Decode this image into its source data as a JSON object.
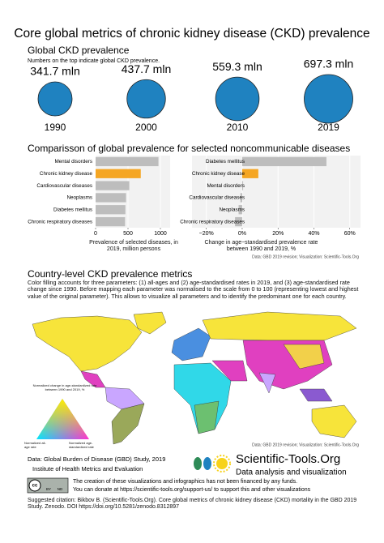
{
  "title": "Core global metrics of chronic kidney disease (CKD) prevalence",
  "comparison_title": "Comparisson of global prevalence for selected noncommunicable diseases",
  "chart_data": [
    {
      "type": "bubble",
      "title": "Global CKD prevalence",
      "subtitle": "Numbers on the top indicate global CKD prevalence.",
      "categories": [
        "1990",
        "2000",
        "2010",
        "2019"
      ],
      "values": [
        341.7,
        437.7,
        559.3,
        697.3
      ],
      "value_labels": [
        "341.7 mln",
        "437.7 mln",
        "559.3 mln",
        "697.3 mln"
      ],
      "color": "#1f82c0"
    },
    {
      "type": "bar",
      "orientation": "horizontal",
      "categories": [
        "Mental disorders",
        "Chronic kidney disease",
        "Cardiovascular diseases",
        "Neoplasms",
        "Diabetes mellitus",
        "Chronic respiratory diseases"
      ],
      "values": [
        970,
        697,
        520,
        470,
        460,
        455
      ],
      "colors": [
        "#bdbdbd",
        "#f5a623",
        "#bdbdbd",
        "#bdbdbd",
        "#bdbdbd",
        "#bdbdbd"
      ],
      "xlabel": "Prevalence of selected diseases, in 2019, million persons",
      "xlim": [
        0,
        1150
      ],
      "xticks": [
        0,
        500,
        1000
      ],
      "grid": true
    },
    {
      "type": "bar",
      "orientation": "horizontal",
      "categories": [
        "Diabetes mellitus",
        "Chronic kidney disease",
        "Mental disorders",
        "Cardiovascular diseases",
        "Neoplasms",
        "Chronic respiratory diseases"
      ],
      "values": [
        47,
        9,
        0.5,
        -1,
        -2,
        -4
      ],
      "colors": [
        "#bdbdbd",
        "#f5a623",
        "#bdbdbd",
        "#bdbdbd",
        "#bdbdbd",
        "#bdbdbd"
      ],
      "xlabel": "Change in age−standardised prevalence rate between 1990 and 2019, %",
      "xlim": [
        -28,
        66
      ],
      "xticks": [
        {
          "value": -20,
          "label": "−20%"
        },
        {
          "value": 0,
          "label": "0%"
        },
        {
          "value": 20,
          "label": "20%"
        },
        {
          "value": 40,
          "label": "40%"
        },
        {
          "value": 60,
          "label": "60%"
        }
      ],
      "grid": true,
      "note": "Data: GBD 2019 revision; Visualization: Scientific-Tools.Org"
    }
  ],
  "map": {
    "title": "Country-level CKD prevalence metrics",
    "description": "Color filling accounts for three parameters: (1) all-ages and (2) age-standardised rates in 2019, and (3) age-standardised rate change since 1990. Before mapping each parameter was normalised to the scale from 0 to 100 (representing lowest and highest value of the original parameter). This allows to visualize all parameters and to identify the predominant one for each country.",
    "legend_title": "Normalized change in age-standardized rate between 1990 and 2019, %",
    "legend_left": "Normalized all-age rate",
    "legend_right": "Normalized age-standardized rate",
    "note": "Data: GBD 2019 revision; Visualization: Scientific-Tools.Org"
  },
  "footer": {
    "source": "Data: Global Burden of Disease (GBD) Study, 2019",
    "institute": "Institute of Health Metrics and Evaluation",
    "brand": "Scientific-Tools.Org",
    "tagline": "Data analysis and visualization",
    "license": [
      "cc",
      "BY",
      "ND"
    ],
    "funding": "The creation of these visualizations and infographics has not been financed by any funds.",
    "donate": "You can donate at https://scientific-tools.org/support-us/ to support this and other visualizations",
    "citation": "Suggested citation: Bikbov B. (Scientific-Tools.Org). Core global metrics of chronic kidney disease (CKD) mortality  in the GBD 2019 Study. Zenodo. DOI https://doi.org/10.5281/zenodo.8312897"
  }
}
